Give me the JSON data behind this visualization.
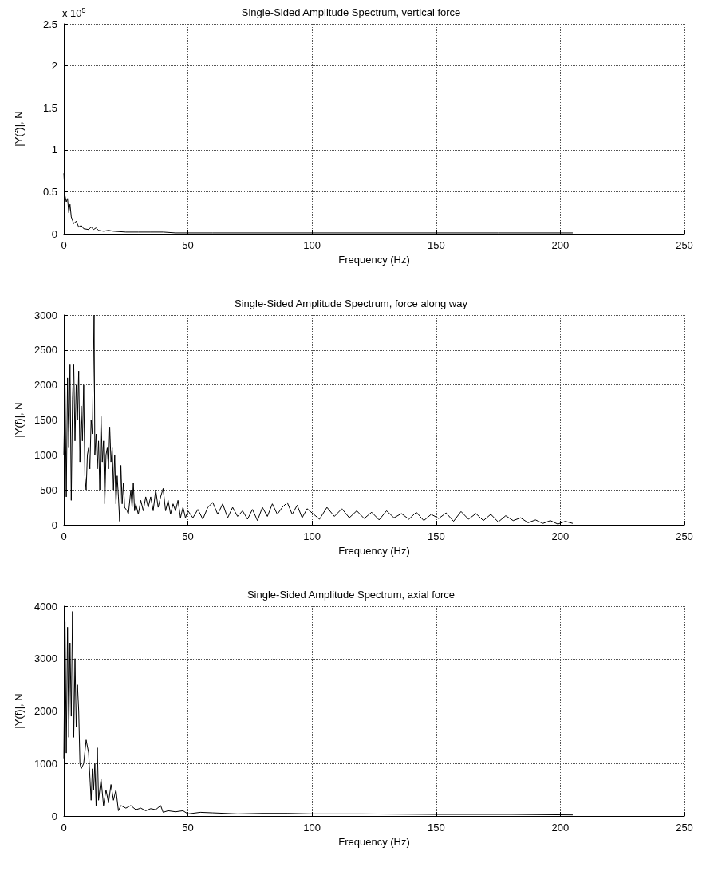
{
  "chart_data": [
    {
      "type": "line",
      "title": "Single-Sided Amplitude Spectrum, vertical force",
      "xlabel": "Frequency (Hz)",
      "ylabel": "|Y(f)|, N",
      "annotations": [
        "x 10$^{5}$"
      ],
      "xlim": [
        0,
        250
      ],
      "xticks": [
        0,
        50,
        100,
        150,
        200,
        250
      ],
      "ylim": [
        0,
        2.5
      ],
      "yticks": [
        0,
        0.5,
        1,
        1.5,
        2,
        2.5
      ],
      "grid": true,
      "marker": "none",
      "line_style": "solid",
      "series": [
        {
          "color": "#000000",
          "x": [
            0,
            0.5,
            1,
            1.5,
            2,
            2.5,
            3,
            4,
            5,
            6,
            7,
            8,
            10,
            11,
            12,
            13,
            14,
            16,
            18,
            20,
            25,
            30,
            35,
            40,
            45,
            50,
            60,
            80,
            100,
            125,
            150,
            175,
            205
          ],
          "values": [
            0.72,
            0.45,
            0.38,
            0.42,
            0.25,
            0.35,
            0.2,
            0.12,
            0.15,
            0.08,
            0.1,
            0.06,
            0.05,
            0.08,
            0.05,
            0.07,
            0.04,
            0.03,
            0.04,
            0.03,
            0.02,
            0.02,
            0.02,
            0.02,
            0.01,
            0.01,
            0.01,
            0.01,
            0.01,
            0.01,
            0.01,
            0.01,
            0.01
          ]
        }
      ]
    },
    {
      "type": "line",
      "title": "Single-Sided Amplitude Spectrum, force along way",
      "xlabel": "Frequency (Hz)",
      "ylabel": "|Y(f)|, N",
      "xlim": [
        0,
        250
      ],
      "xticks": [
        0,
        50,
        100,
        150,
        200,
        250
      ],
      "ylim": [
        0,
        3000
      ],
      "yticks": [
        0,
        500,
        1000,
        1500,
        2000,
        2500,
        3000
      ],
      "grid": true,
      "marker": "none",
      "line_style": "solid",
      "series": [
        {
          "color": "#000000",
          "x": [
            0,
            0.5,
            1,
            1.5,
            2,
            2.5,
            3,
            3.5,
            4,
            4.5,
            5,
            5.5,
            6,
            6.5,
            7,
            7.5,
            8,
            8.5,
            9,
            9.5,
            10,
            10.5,
            11,
            11.5,
            12,
            12.2,
            12.5,
            13,
            13.5,
            14,
            14.5,
            15,
            15.5,
            16,
            16.5,
            17,
            17.5,
            18,
            18.5,
            19,
            19.5,
            20,
            20.5,
            21,
            21.5,
            22,
            22.5,
            23,
            23.5,
            24,
            24.5,
            25.5,
            26,
            27,
            27.5,
            28,
            28.5,
            29,
            30,
            31,
            32,
            33,
            34,
            35,
            36,
            37,
            38,
            39,
            40,
            41,
            42,
            43,
            44,
            45,
            46,
            47,
            48,
            49,
            50,
            52,
            54,
            56,
            58,
            60,
            62,
            64,
            66,
            68,
            70,
            72,
            74,
            76,
            78,
            80,
            82,
            84,
            86,
            88,
            90,
            92,
            94,
            96,
            98,
            100,
            103,
            106,
            109,
            112,
            115,
            118,
            121,
            124,
            127,
            130,
            133,
            136,
            139,
            142,
            145,
            148,
            151,
            154,
            157,
            160,
            163,
            166,
            169,
            172,
            175,
            178,
            181,
            184,
            187,
            190,
            193,
            196,
            199,
            202,
            205
          ],
          "values": [
            1000,
            2000,
            400,
            2100,
            1100,
            2300,
            350,
            1800,
            2300,
            1200,
            2000,
            1500,
            2200,
            900,
            1700,
            1200,
            2000,
            700,
            500,
            1000,
            1100,
            800,
            1500,
            1300,
            2500,
            3000,
            1000,
            1300,
            800,
            1200,
            500,
            1550,
            900,
            1200,
            300,
            1000,
            1100,
            800,
            1400,
            900,
            1100,
            500,
            1000,
            300,
            700,
            400,
            50,
            850,
            300,
            600,
            250,
            200,
            150,
            500,
            250,
            600,
            200,
            300,
            150,
            350,
            200,
            400,
            250,
            400,
            200,
            500,
            250,
            400,
            520,
            200,
            350,
            150,
            300,
            200,
            350,
            100,
            250,
            100,
            200,
            100,
            220,
            80,
            250,
            320,
            150,
            300,
            100,
            250,
            120,
            200,
            80,
            220,
            60,
            250,
            120,
            300,
            150,
            250,
            320,
            150,
            280,
            100,
            230,
            170,
            80,
            250,
            120,
            230,
            100,
            200,
            90,
            180,
            70,
            200,
            100,
            160,
            80,
            180,
            60,
            150,
            90,
            170,
            50,
            190,
            80,
            160,
            60,
            150,
            40,
            130,
            60,
            100,
            30,
            70,
            20,
            60,
            10,
            50,
            20
          ]
        }
      ]
    },
    {
      "type": "line",
      "title": "Single-Sided Amplitude Spectrum, axial force",
      "xlabel": "Frequency (Hz)",
      "ylabel": "|Y(f)|, N",
      "xlim": [
        0,
        250
      ],
      "xticks": [
        0,
        50,
        100,
        150,
        200,
        250
      ],
      "ylim": [
        0,
        4000
      ],
      "yticks": [
        0,
        1000,
        2000,
        3000,
        4000
      ],
      "grid": true,
      "marker": "none",
      "line_style": "solid",
      "series": [
        {
          "color": "#000000",
          "x": [
            0,
            0.5,
            1,
            1.5,
            2,
            2.5,
            3,
            3.5,
            4,
            4.5,
            5,
            5.5,
            6,
            6.5,
            7,
            8,
            9,
            10,
            11,
            11.5,
            12,
            12.5,
            13,
            13.5,
            14,
            15,
            16,
            17,
            18,
            19,
            20,
            21,
            22,
            23,
            25,
            27,
            29,
            31,
            33,
            35,
            37,
            39,
            40,
            42,
            45,
            48,
            50,
            55,
            60,
            70,
            80,
            90,
            100,
            120,
            150,
            180,
            205
          ],
          "values": [
            1100,
            3700,
            1200,
            3600,
            1500,
            3300,
            1900,
            3900,
            1500,
            3000,
            1700,
            2500,
            2000,
            1000,
            900,
            1000,
            1450,
            1200,
            300,
            900,
            500,
            1000,
            200,
            1300,
            300,
            700,
            200,
            500,
            250,
            600,
            300,
            500,
            100,
            200,
            150,
            200,
            120,
            150,
            100,
            140,
            120,
            200,
            70,
            100,
            80,
            100,
            40,
            70,
            60,
            40,
            50,
            50,
            40,
            40,
            30,
            30,
            20
          ]
        }
      ]
    }
  ]
}
